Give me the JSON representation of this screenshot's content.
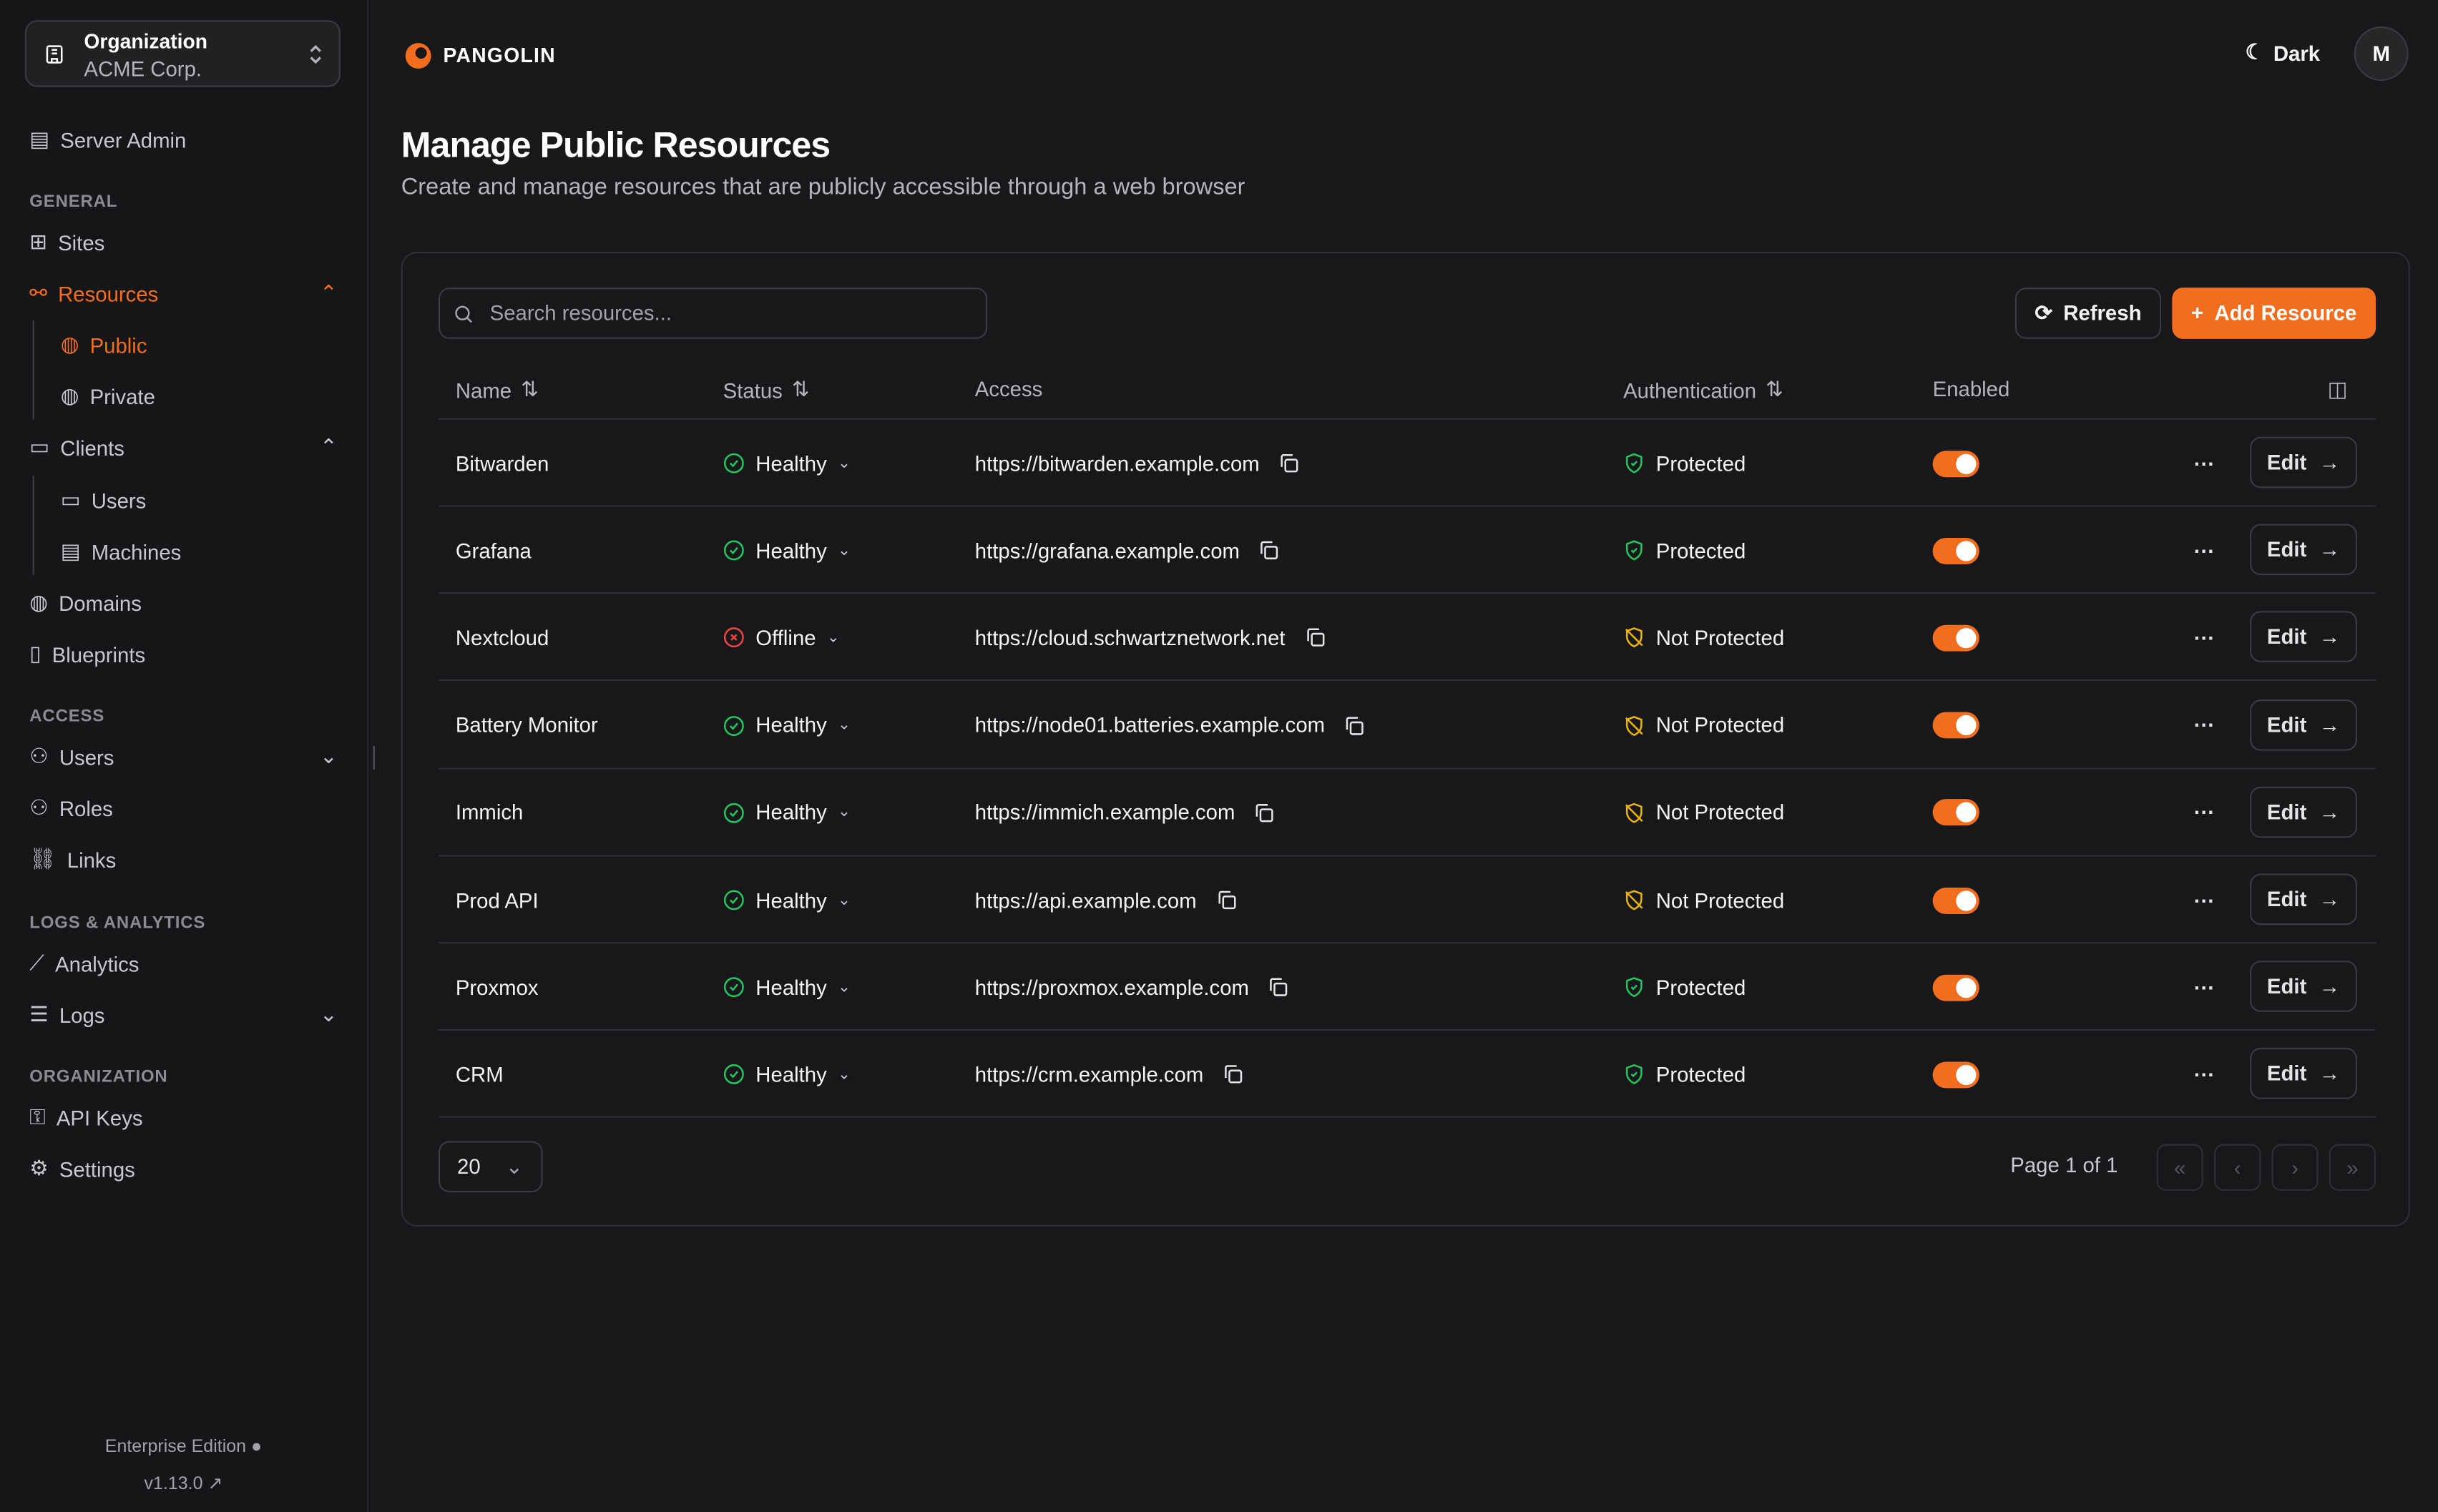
{
  "sidebar": {
    "org_label": "Organization",
    "org_name": "ACME Corp.",
    "server_admin": "Server Admin",
    "sections": {
      "general": "GENERAL",
      "access": "ACCESS",
      "logs": "LOGS & ANALYTICS",
      "organization": "ORGANIZATION"
    },
    "items": {
      "sites": "Sites",
      "resources": "Resources",
      "public": "Public",
      "private": "Private",
      "clients": "Clients",
      "users_client": "Users",
      "machines": "Machines",
      "domains": "Domains",
      "blueprints": "Blueprints",
      "users": "Users",
      "roles": "Roles",
      "links": "Links",
      "analytics": "Analytics",
      "logs": "Logs",
      "api_keys": "API Keys",
      "settings": "Settings"
    },
    "edition": "Enterprise Edition",
    "version": "v1.13.0"
  },
  "topbar": {
    "brand": "PANGOLIN",
    "theme": "Dark",
    "avatar": "M"
  },
  "page": {
    "title": "Manage Public Resources",
    "subtitle": "Create and manage resources that are publicly accessible through a web browser"
  },
  "toolbar": {
    "search_placeholder": "Search resources...",
    "refresh": "Refresh",
    "add": "Add Resource"
  },
  "table": {
    "headers": {
      "name": "Name",
      "status": "Status",
      "access": "Access",
      "auth": "Authentication",
      "enabled": "Enabled"
    },
    "edit_label": "Edit",
    "rows": [
      {
        "name": "Bitwarden",
        "status": "Healthy",
        "access": "https://bitwarden.example.com",
        "auth": "Protected",
        "enabled": true
      },
      {
        "name": "Grafana",
        "status": "Healthy",
        "access": "https://grafana.example.com",
        "auth": "Protected",
        "enabled": true
      },
      {
        "name": "Nextcloud",
        "status": "Offline",
        "access": "https://cloud.schwartznetwork.net",
        "auth": "Not Protected",
        "enabled": true
      },
      {
        "name": "Battery Monitor",
        "status": "Healthy",
        "access": "https://node01.batteries.example.com",
        "auth": "Not Protected",
        "enabled": true
      },
      {
        "name": "Immich",
        "status": "Healthy",
        "access": "https://immich.example.com",
        "auth": "Not Protected",
        "enabled": true
      },
      {
        "name": "Prod API",
        "status": "Healthy",
        "access": "https://api.example.com",
        "auth": "Not Protected",
        "enabled": true
      },
      {
        "name": "Proxmox",
        "status": "Healthy",
        "access": "https://proxmox.example.com",
        "auth": "Protected",
        "enabled": true
      },
      {
        "name": "CRM",
        "status": "Healthy",
        "access": "https://crm.example.com",
        "auth": "Protected",
        "enabled": true
      }
    ]
  },
  "pagination": {
    "page_size": "20",
    "page_info": "Page 1 of 1"
  },
  "colors": {
    "accent": "#f26d1d",
    "healthy": "#22c55e",
    "offline": "#ef4444",
    "protected": "#22c55e",
    "not_protected": "#eab308"
  }
}
